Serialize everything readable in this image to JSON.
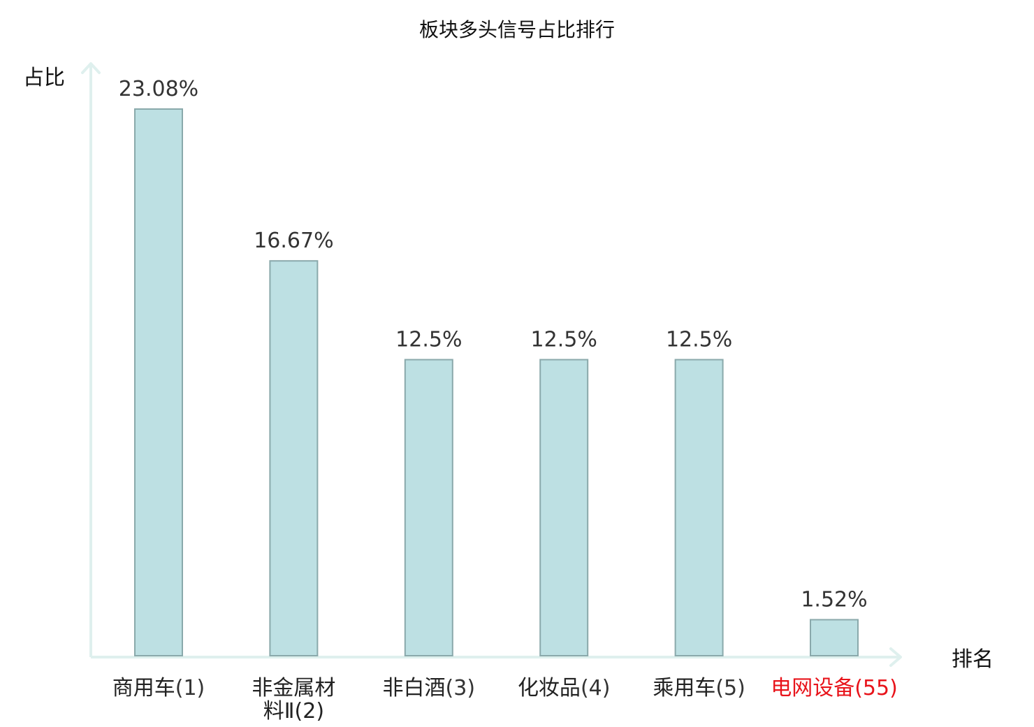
{
  "chart_data": {
    "type": "bar",
    "title": "板块多头信号占比排行",
    "ylabel": "占比",
    "xlabel": "排名",
    "categories": [
      {
        "name": "商用车",
        "rank": "(1)",
        "highlight": false
      },
      {
        "name": "非金属材料Ⅱ",
        "rank": "(2)",
        "highlight": false
      },
      {
        "name": "非白酒",
        "rank": "(3)",
        "highlight": false
      },
      {
        "name": "化妆品",
        "rank": "(4)",
        "highlight": false
      },
      {
        "name": "乘用车",
        "rank": "(5)",
        "highlight": false
      },
      {
        "name": "电网设备",
        "rank": "(55)",
        "highlight": true
      }
    ],
    "values": [
      23.08,
      16.67,
      12.5,
      12.5,
      12.5,
      1.52
    ],
    "value_labels": [
      "23.08%",
      "16.67%",
      "12.5%",
      "12.5%",
      "12.5%",
      "1.52%"
    ],
    "ylim": [
      0,
      23.08
    ],
    "grid": false,
    "colors": {
      "bar_fill": "#bde0e3",
      "bar_stroke": "#8aa9ab",
      "axis": "#dff0ee",
      "highlight_text": "#e8141b"
    }
  }
}
